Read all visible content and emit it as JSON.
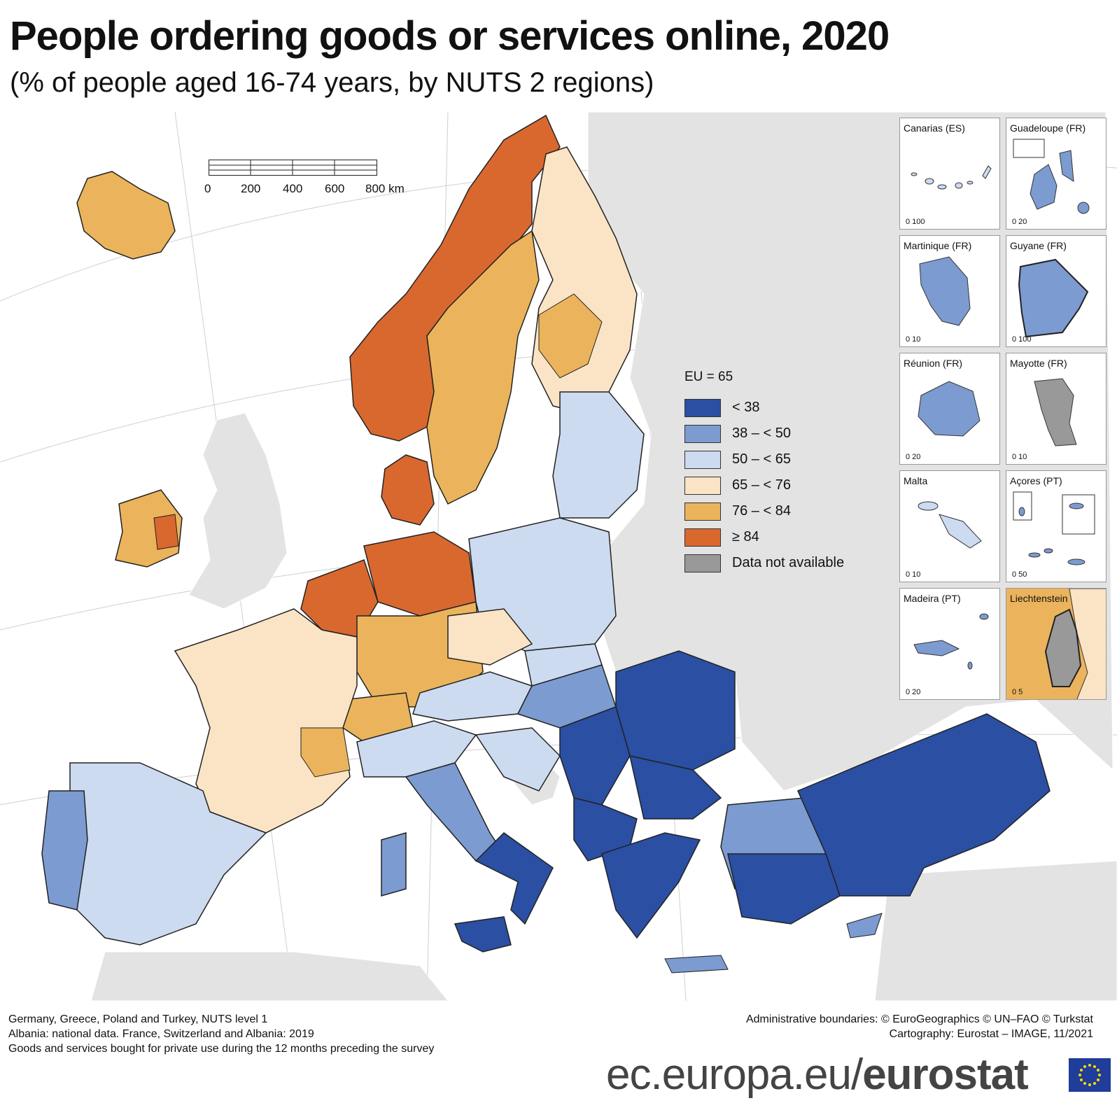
{
  "title": "People ordering goods or services online, 2020",
  "subtitle": "(% of people aged 16-74 years, by NUTS 2 regions)",
  "scale_bar": {
    "labels": [
      "0",
      "200",
      "400",
      "600",
      "800 km"
    ]
  },
  "legend": {
    "title": "EU = 65",
    "classes": [
      {
        "label": "< 38",
        "color": "#2a4fa3"
      },
      {
        "label": "38 – < 50",
        "color": "#7c9bd0"
      },
      {
        "label": "50 – < 65",
        "color": "#ccdbf0"
      },
      {
        "label": "65 – < 76",
        "color": "#fbe4c5"
      },
      {
        "label": "76 – < 84",
        "color": "#ebb45c"
      },
      {
        "label": "≥ 84",
        "color": "#d9682f"
      },
      {
        "label": "Data not available",
        "color": "#999999"
      }
    ]
  },
  "colors": {
    "non_eu": "#e3e3e3",
    "sea": "#ffffff",
    "border": "#222222"
  },
  "insets": [
    {
      "name": "Canarias (ES)",
      "scale": "0   100"
    },
    {
      "name": "Guadeloupe (FR)",
      "scale": "0   20"
    },
    {
      "name": "Martinique (FR)",
      "scale": "0   10"
    },
    {
      "name": "Guyane (FR)",
      "scale": "0   100"
    },
    {
      "name": "Réunion (FR)",
      "scale": "0   20"
    },
    {
      "name": "Mayotte (FR)",
      "scale": "0   10"
    },
    {
      "name": "Malta",
      "scale": "0   10"
    },
    {
      "name": "Açores (PT)",
      "scale": "0   50"
    },
    {
      "name": "Madeira (PT)",
      "scale": "0   20"
    },
    {
      "name": "Liechtenstein",
      "scale": "0   5"
    }
  ],
  "notes": [
    "Germany, Greece, Poland and Turkey, NUTS level 1",
    "Albania: national data. France, Switzerland and Albania: 2019",
    "Goods and services bought for private use during the 12 months preceding the survey"
  ],
  "credits": [
    "Administrative boundaries: © EuroGeographics © UN–FAO © Turkstat",
    "Cartography: Eurostat – IMAGE, 11/2021"
  ],
  "brand": {
    "domain": "ec.europa.eu/",
    "name": "eurostat"
  }
}
